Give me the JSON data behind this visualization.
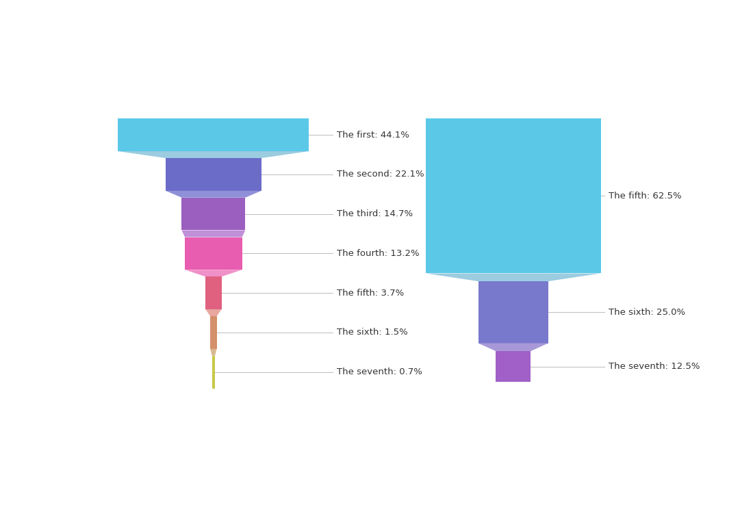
{
  "funnel1": {
    "labels": [
      "The first: 44.1%",
      "The second: 22.1%",
      "The third: 14.7%",
      "The fourth: 13.2%",
      "The fifth: 3.7%",
      "The sixth: 1.5%",
      "The seventh: 0.7%"
    ],
    "values": [
      44.1,
      22.1,
      14.7,
      13.2,
      3.7,
      1.5,
      0.7
    ],
    "colors": [
      "#5BC8E8",
      "#6B6BC8",
      "#9B5FC0",
      "#E85DB0",
      "#E06080",
      "#D4906A",
      "#C8C84A"
    ],
    "connector_colors": [
      "#9BCCE0",
      "#9090D8",
      "#C090D8",
      "#F090C8",
      "#E8A8A0",
      "#D8B890"
    ]
  },
  "funnel2": {
    "labels": [
      "The fifth: 62.5%",
      "The sixth: 25.0%",
      "The seventh: 12.5%"
    ],
    "values": [
      62.5,
      25.0,
      12.5
    ],
    "colors": [
      "#5BC8E8",
      "#7878CC",
      "#A060C8"
    ],
    "connector_colors": [
      "#9BCCE0",
      "#A898D8"
    ]
  },
  "background_color": "#FFFFFF",
  "label_fontsize": 9.5,
  "label_color": "#333333"
}
